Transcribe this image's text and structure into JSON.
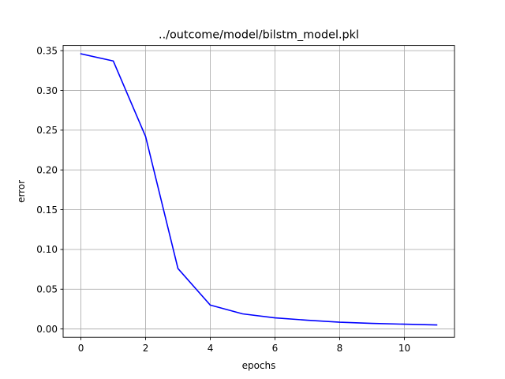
{
  "chart_data": {
    "type": "line",
    "title": "../outcome/model/bilstm_model.pkl",
    "xlabel": "epochs",
    "ylabel": "error",
    "xlim": [
      -0.55,
      11.55
    ],
    "ylim": [
      -0.0105,
      0.3565
    ],
    "xticks": [
      0,
      2,
      4,
      6,
      8,
      10
    ],
    "yticks": [
      0.0,
      0.05,
      0.1,
      0.15,
      0.2,
      0.25,
      0.3,
      0.35
    ],
    "grid": true,
    "series": [
      {
        "color": "#0000ff",
        "x": [
          0,
          1,
          2,
          3,
          4,
          5,
          6,
          7,
          8,
          9,
          10,
          11
        ],
        "y": [
          0.346,
          0.337,
          0.242,
          0.076,
          0.03,
          0.019,
          0.014,
          0.011,
          0.0085,
          0.007,
          0.006,
          0.005
        ]
      }
    ]
  }
}
